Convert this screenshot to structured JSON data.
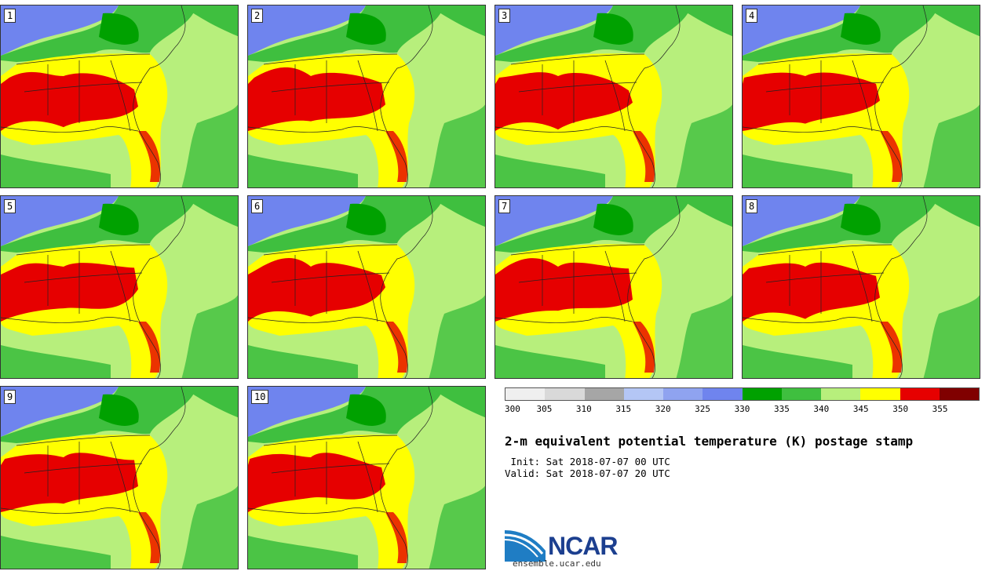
{
  "panels": [
    {
      "label": "1"
    },
    {
      "label": "2"
    },
    {
      "label": "3"
    },
    {
      "label": "4"
    },
    {
      "label": "5"
    },
    {
      "label": "6"
    },
    {
      "label": "7"
    },
    {
      "label": "8"
    },
    {
      "label": "9"
    },
    {
      "label": "10"
    }
  ],
  "colorbar": {
    "colors": [
      "#efefef",
      "#d9d9d9",
      "#a6a6a6",
      "#b4c6f5",
      "#8fa3f0",
      "#6f84ee",
      "#00a100",
      "#3fbf3f",
      "#b7ef7c",
      "#ffff00",
      "#e60000",
      "#800000"
    ],
    "labels": [
      "300",
      "305",
      "310",
      "315",
      "320",
      "325",
      "330",
      "335",
      "340",
      "345",
      "350",
      "355"
    ]
  },
  "title": "2-m equivalent potential temperature (K) postage stamp",
  "init": " Init: Sat 2018-07-07 00 UTC",
  "valid": "Valid: Sat 2018-07-07 20 UTC",
  "logo": {
    "name": "NCAR",
    "url": "ensemble.ucar.edu"
  }
}
